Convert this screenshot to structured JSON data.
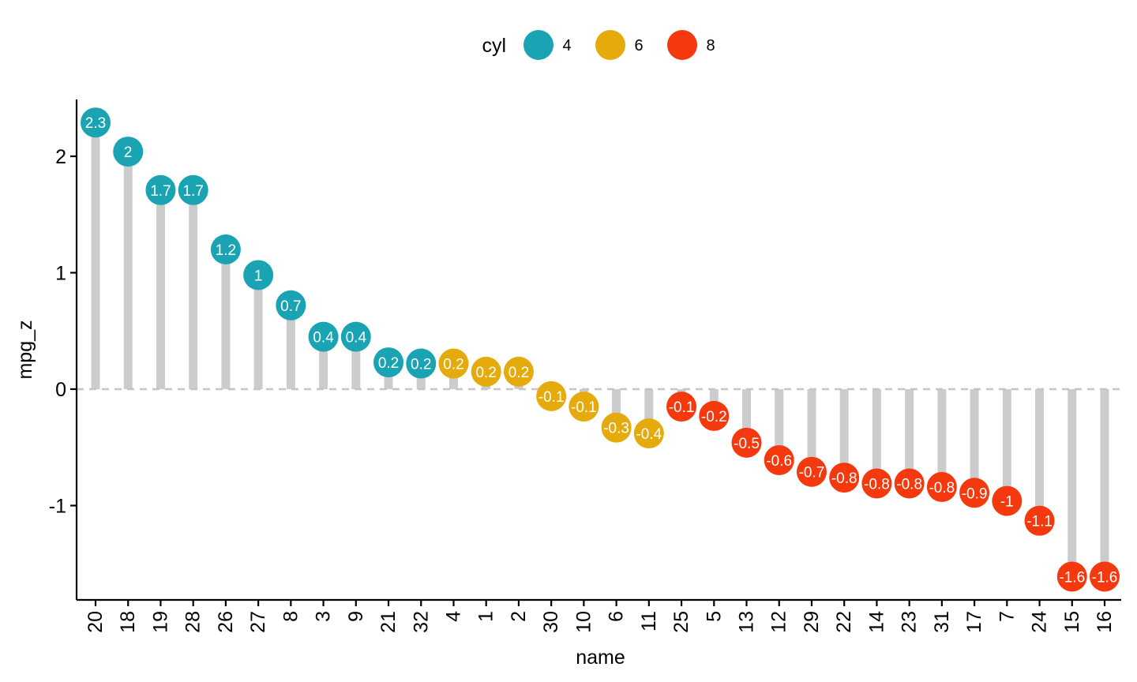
{
  "chart_data": {
    "type": "lollipop",
    "xlabel": "name",
    "ylabel": "mpg_z",
    "ylim": [
      -1.8,
      2.5
    ],
    "yticks": [
      2,
      1,
      0,
      -1
    ],
    "ytick_labels": [
      "2",
      "1",
      "0",
      "-1"
    ],
    "reference_line": {
      "y": 0,
      "style": "dashed"
    },
    "legend": {
      "title": "cyl",
      "position": "top",
      "entries": [
        {
          "label": "4",
          "color": "#1AA3B3"
        },
        {
          "label": "6",
          "color": "#E5AA0B"
        },
        {
          "label": "8",
          "color": "#F5390E"
        }
      ]
    },
    "stem_color": "#CCCCCC",
    "points": [
      {
        "name": "20",
        "value": 2.29,
        "label": "2.3",
        "cyl": "4"
      },
      {
        "name": "18",
        "value": 2.04,
        "label": "2",
        "cyl": "4"
      },
      {
        "name": "19",
        "value": 1.71,
        "label": "1.7",
        "cyl": "4"
      },
      {
        "name": "28",
        "value": 1.71,
        "label": "1.7",
        "cyl": "4"
      },
      {
        "name": "26",
        "value": 1.2,
        "label": "1.2",
        "cyl": "4"
      },
      {
        "name": "27",
        "value": 0.98,
        "label": "1",
        "cyl": "4"
      },
      {
        "name": "8",
        "value": 0.72,
        "label": "0.7",
        "cyl": "4"
      },
      {
        "name": "3",
        "value": 0.45,
        "label": "0.4",
        "cyl": "4"
      },
      {
        "name": "9",
        "value": 0.45,
        "label": "0.4",
        "cyl": "4"
      },
      {
        "name": "21",
        "value": 0.23,
        "label": "0.2",
        "cyl": "4"
      },
      {
        "name": "32",
        "value": 0.22,
        "label": "0.2",
        "cyl": "4"
      },
      {
        "name": "4",
        "value": 0.22,
        "label": "0.2",
        "cyl": "6"
      },
      {
        "name": "1",
        "value": 0.15,
        "label": "0.2",
        "cyl": "6"
      },
      {
        "name": "2",
        "value": 0.15,
        "label": "0.2",
        "cyl": "6"
      },
      {
        "name": "30",
        "value": -0.06,
        "label": "-0.1",
        "cyl": "6"
      },
      {
        "name": "10",
        "value": -0.15,
        "label": "-0.1",
        "cyl": "6"
      },
      {
        "name": "6",
        "value": -0.33,
        "label": "-0.3",
        "cyl": "6"
      },
      {
        "name": "11",
        "value": -0.38,
        "label": "-0.4",
        "cyl": "6"
      },
      {
        "name": "25",
        "value": -0.15,
        "label": "-0.1",
        "cyl": "8"
      },
      {
        "name": "5",
        "value": -0.23,
        "label": "-0.2",
        "cyl": "8"
      },
      {
        "name": "13",
        "value": -0.46,
        "label": "-0.5",
        "cyl": "8"
      },
      {
        "name": "12",
        "value": -0.61,
        "label": "-0.6",
        "cyl": "8"
      },
      {
        "name": "29",
        "value": -0.71,
        "label": "-0.7",
        "cyl": "8"
      },
      {
        "name": "22",
        "value": -0.76,
        "label": "-0.8",
        "cyl": "8"
      },
      {
        "name": "14",
        "value": -0.81,
        "label": "-0.8",
        "cyl": "8"
      },
      {
        "name": "23",
        "value": -0.81,
        "label": "-0.8",
        "cyl": "8"
      },
      {
        "name": "31",
        "value": -0.84,
        "label": "-0.8",
        "cyl": "8"
      },
      {
        "name": "17",
        "value": -0.89,
        "label": "-0.9",
        "cyl": "8"
      },
      {
        "name": "7",
        "value": -0.96,
        "label": "-1",
        "cyl": "8"
      },
      {
        "name": "24",
        "value": -1.13,
        "label": "-1.1",
        "cyl": "8"
      },
      {
        "name": "15",
        "value": -1.61,
        "label": "-1.6",
        "cyl": "8"
      },
      {
        "name": "16",
        "value": -1.61,
        "label": "-1.6",
        "cyl": "8"
      }
    ]
  }
}
